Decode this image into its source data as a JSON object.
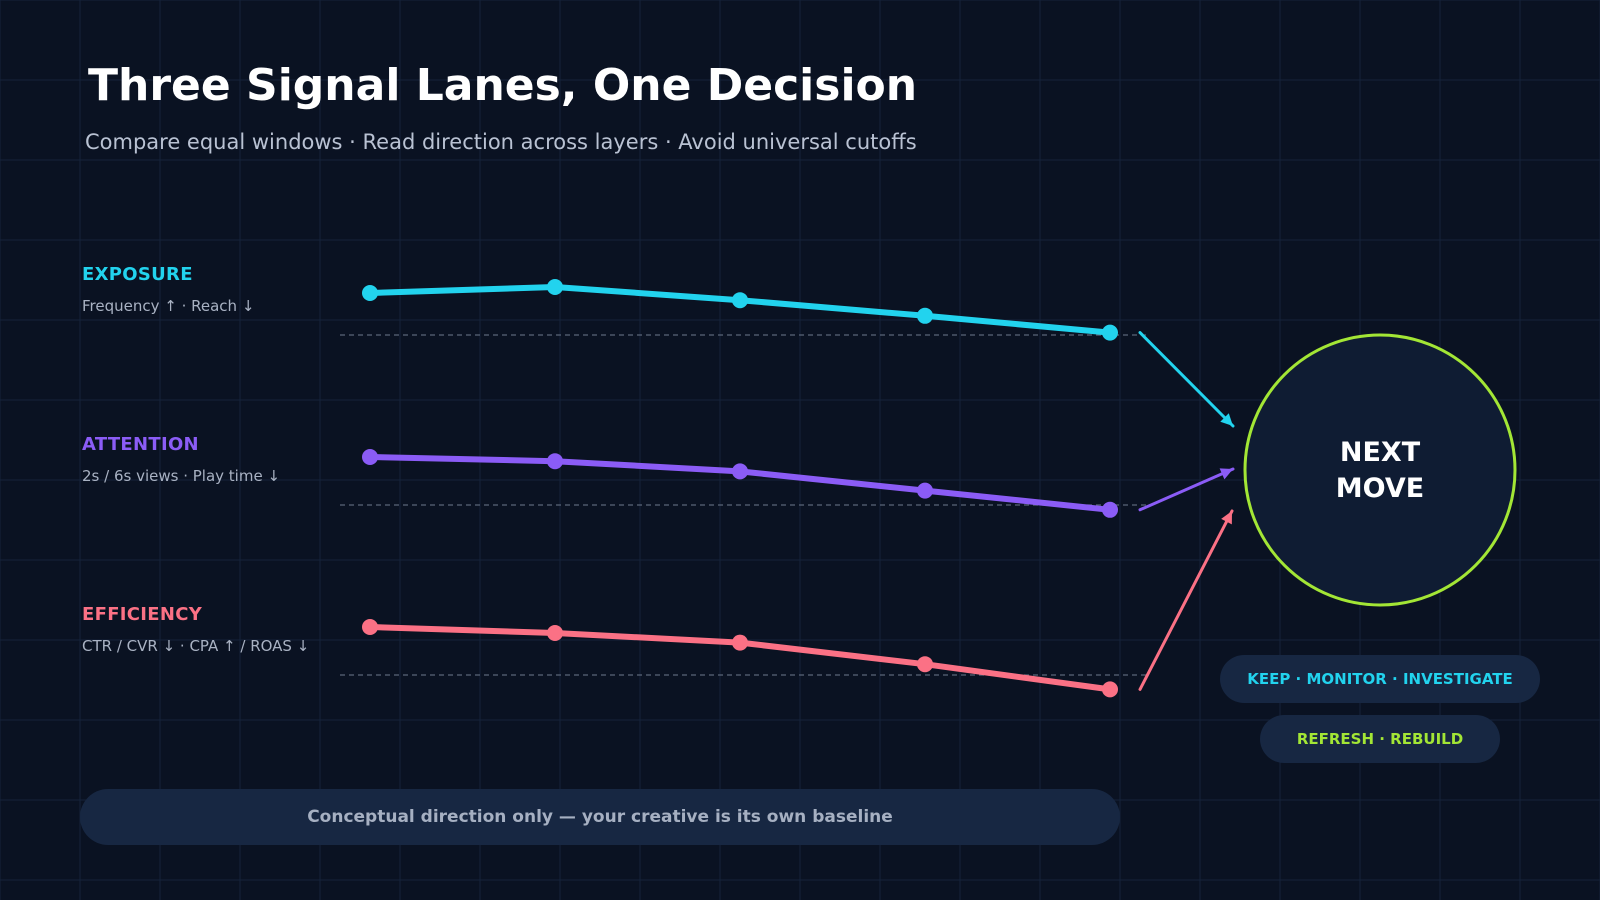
{
  "title": "Three Signal Lanes, One Decision",
  "subtitle": "Compare equal windows · Read direction across layers · Avoid universal cutoffs",
  "lanes": [
    {
      "name": "EXPOSURE",
      "metrics": "Frequency ↑ · Reach ↓",
      "color": "#22d3ee",
      "values": [
        0.7,
        0.8,
        0.58,
        0.32,
        0.04
      ]
    },
    {
      "name": "ATTENTION",
      "metrics": "2s / 6s views · Play time ↓",
      "color": "#8b5cf6",
      "values": [
        0.8,
        0.73,
        0.56,
        0.24,
        -0.08
      ]
    },
    {
      "name": "EFFICIENCY",
      "metrics": "CTR / CVR ↓ · CPA ↑ / ROAS ↓",
      "color": "#fb7185",
      "values": [
        0.8,
        0.7,
        0.54,
        0.18,
        -0.24
      ]
    }
  ],
  "decision": {
    "label_line1": "NEXT",
    "label_line2": "MOVE",
    "ring_color": "#a3e635"
  },
  "outcomes": [
    {
      "label": "KEEP · MONITOR · INVESTIGATE",
      "color": "#22d3ee"
    },
    {
      "label": "REFRESH · REBUILD",
      "color": "#a3e635"
    }
  ],
  "footer_note": "Conceptual direction only — your creative is its own baseline"
}
